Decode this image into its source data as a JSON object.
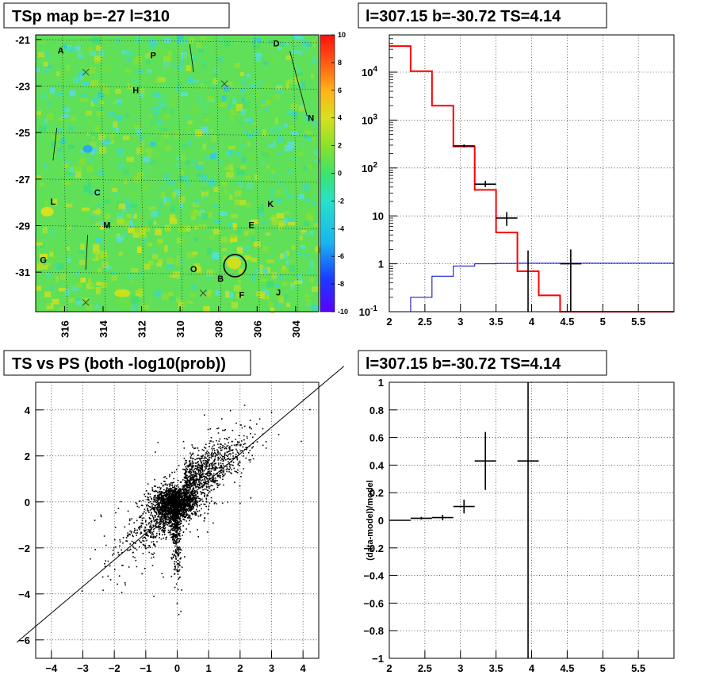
{
  "chart_data": [
    {
      "type": "heatmap",
      "title": "TSp map b=-27 l=310",
      "x_ticks": [
        "316",
        "314",
        "312",
        "310",
        "308",
        "306",
        "304"
      ],
      "y_ticks": [
        "-21",
        "-23",
        "-25",
        "-27",
        "-29",
        "-31"
      ],
      "colorbar_ticks": [
        "10",
        "8",
        "6",
        "4",
        "2",
        "0",
        "-2",
        "-4",
        "-6",
        "-8",
        "-10"
      ],
      "zlim": [
        -10,
        10
      ],
      "xlim": [
        317.5,
        302.8
      ],
      "ylim": [
        -32.7,
        -20.8
      ],
      "sources": [
        {
          "label": "A",
          "l": 316.2,
          "b": -21.6
        },
        {
          "label": "P",
          "l": 311.4,
          "b": -21.8
        },
        {
          "label": "D",
          "l": 305.0,
          "b": -21.3
        },
        {
          "label": "H",
          "l": 312.3,
          "b": -23.3
        },
        {
          "label": "N",
          "l": 303.2,
          "b": -24.5
        },
        {
          "label": "C",
          "l": 314.3,
          "b": -27.7
        },
        {
          "label": "L",
          "l": 316.6,
          "b": -28.1
        },
        {
          "label": "K",
          "l": 305.3,
          "b": -28.2
        },
        {
          "label": "M",
          "l": 313.8,
          "b": -29.1
        },
        {
          "label": "E",
          "l": 306.3,
          "b": -29.1
        },
        {
          "label": "G",
          "l": 317.1,
          "b": -30.6
        },
        {
          "label": "O",
          "l": 309.3,
          "b": -31.0
        },
        {
          "label": "B",
          "l": 307.9,
          "b": -31.4
        },
        {
          "label": "J",
          "l": 304.9,
          "b": -32.0
        },
        {
          "label": "F",
          "l": 306.8,
          "b": -32.1
        }
      ],
      "crosses": [
        {
          "l": 314.9,
          "b": -22.4
        },
        {
          "l": 307.7,
          "b": -22.9
        },
        {
          "l": 308.8,
          "b": -31.9
        },
        {
          "l": 314.9,
          "b": -32.3
        }
      ],
      "circle": {
        "l": 307.15,
        "b": -30.72
      }
    },
    {
      "type": "line",
      "title": "l=307.15 b=-30.72 TS=4.14",
      "x_ticks": [
        "2",
        "2.5",
        "3",
        "3.5",
        "4",
        "4.5",
        "5",
        "5.5"
      ],
      "y_ticks": [
        "10^-1",
        "1",
        "10",
        "10^2",
        "10^3",
        "10^4"
      ],
      "xlim": [
        2,
        6
      ],
      "ylim": [
        0.1,
        60000
      ],
      "yscale": "log",
      "model_steps": {
        "edges": [
          2.0,
          2.3,
          2.6,
          2.9,
          3.2,
          3.5,
          3.8,
          4.1,
          4.4,
          6.0
        ],
        "values": [
          35000,
          10500,
          2000,
          280,
          35,
          4.5,
          0.7,
          0.22,
          0.1
        ]
      },
      "background_steps": {
        "edges": [
          2.3,
          2.6,
          2.9,
          3.2,
          3.5,
          3.8,
          4.1,
          6.0
        ],
        "values": [
          0.2,
          0.55,
          0.9,
          1.0,
          1.02,
          1.03,
          1.03
        ]
      },
      "data_points": [
        {
          "x": 3.05,
          "y": 290,
          "xerr": 0.15,
          "ylo": 270,
          "yhi": 310
        },
        {
          "x": 3.35,
          "y": 46,
          "xerr": 0.15,
          "ylo": 40,
          "yhi": 54
        },
        {
          "x": 3.65,
          "y": 9,
          "xerr": 0.15,
          "ylo": 6.2,
          "yhi": 12
        },
        {
          "x": 3.95,
          "y": 1,
          "xerr": 0.0,
          "ylo": 0.1,
          "yhi": 1.9
        },
        {
          "x": 4.55,
          "y": 1.0,
          "xerr": 0.15,
          "ylo": 0.1,
          "yhi": 2.0
        }
      ]
    },
    {
      "type": "scatter",
      "title": "TS vs PS (both -log10(prob))",
      "x_ticks": [
        "-4",
        "-3",
        "-2",
        "-1",
        "0",
        "1",
        "2",
        "3",
        "4"
      ],
      "y_ticks": [
        "-6",
        "-4",
        "-2",
        "0",
        "2",
        "4"
      ],
      "xlim": [
        -4.5,
        4.5
      ],
      "ylim": [
        -6.8,
        5.2
      ],
      "reference_line": {
        "x1": -5.1,
        "y1": -6.1,
        "x2": 5.3,
        "y2": 5.9
      }
    },
    {
      "type": "scatter",
      "title": "l=307.15 b=-30.72 TS=4.14",
      "ylabel": "(data-model)/model",
      "x_ticks": [
        "2",
        "2.5",
        "3",
        "3.5",
        "4",
        "4.5",
        "5",
        "5.5"
      ],
      "y_ticks": [
        "1",
        "0.8",
        "0.6",
        "0.4",
        "0.2",
        "0",
        "-0.2",
        "-0.4",
        "-0.6",
        "-0.8",
        "-1"
      ],
      "xlim": [
        2,
        6
      ],
      "ylim": [
        -1,
        1
      ],
      "data_points": [
        {
          "x": 2.15,
          "y": 0.0,
          "xerr": 0.15,
          "yerr": 0.0
        },
        {
          "x": 2.45,
          "y": 0.015,
          "xerr": 0.15,
          "yerr": 0.01
        },
        {
          "x": 2.75,
          "y": 0.02,
          "xerr": 0.15,
          "yerr": 0.02
        },
        {
          "x": 3.05,
          "y": 0.1,
          "xerr": 0.15,
          "yerr": 0.05
        },
        {
          "x": 3.35,
          "y": 0.43,
          "xerr": 0.15,
          "yerr": 0.21
        },
        {
          "x": 3.95,
          "y": 0.43,
          "xerr": 0.15,
          "yerr": 1.5
        }
      ]
    }
  ]
}
